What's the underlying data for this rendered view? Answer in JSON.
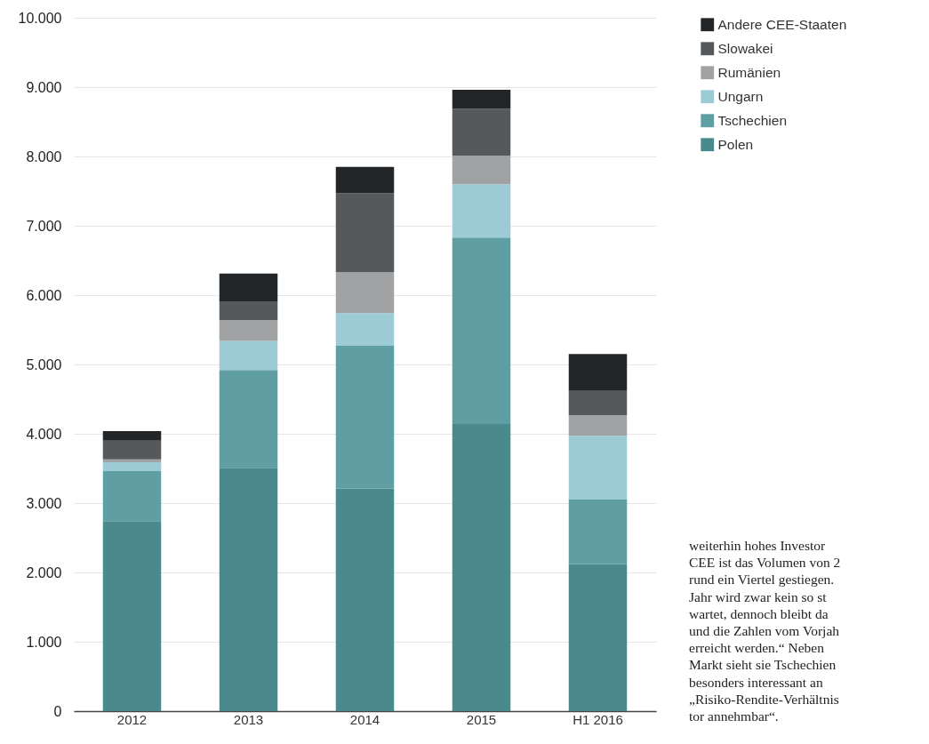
{
  "chart_data": {
    "type": "bar",
    "stacked": true,
    "categories": [
      "2012",
      "2013",
      "2014",
      "2015",
      "H1 2016"
    ],
    "series": [
      {
        "name": "Polen",
        "color": "#4a8a8c",
        "values": [
          2740,
          3510,
          3210,
          4140,
          2120
        ]
      },
      {
        "name": "Tschechien",
        "color": "#5f9ea2",
        "values": [
          720,
          1410,
          2060,
          2690,
          930
        ]
      },
      {
        "name": "Ungarn",
        "color": "#9ccbd6",
        "values": [
          130,
          420,
          470,
          770,
          920
        ]
      },
      {
        "name": "Rumänien",
        "color": "#a0a2a4",
        "values": [
          40,
          300,
          590,
          410,
          300
        ]
      },
      {
        "name": "Slowakei",
        "color": "#55595c",
        "values": [
          270,
          270,
          1140,
          680,
          350
        ]
      },
      {
        "name": "Andere CEE-Staaten",
        "color": "#232629",
        "values": [
          140,
          400,
          380,
          270,
          530
        ]
      }
    ],
    "ylim": [
      0,
      10000
    ],
    "yticks": [
      0,
      {
        "value": 1000,
        "label": "1.000"
      },
      {
        "value": 2000,
        "label": "2.000"
      },
      {
        "value": 3000,
        "label": "3.000"
      },
      {
        "value": 4000,
        "label": "4.000"
      },
      {
        "value": 5000,
        "label": "5.000"
      },
      {
        "value": 6000,
        "label": "6.000"
      },
      {
        "value": 7000,
        "label": "7.000"
      },
      {
        "value": 8000,
        "label": "8.000"
      },
      {
        "value": 9000,
        "label": "9.000"
      },
      {
        "value": 10000,
        "label": "10.000"
      }
    ],
    "grid": "y",
    "legend": "top right",
    "annotations": [
      "weiterhin hohes Investor",
      "CEE ist das Volumen von 2",
      "rund ein Viertel gestiegen.",
      "Jahr wird zwar kein so st",
      "wartet, dennoch bleibt da",
      "und die Zahlen vom Vorjah",
      "erreicht werden.“ Neben",
      "Markt sieht sie Tschechien",
      "besonders interessant an",
      "„Risiko-Rendite-Verhältnis",
      "tor annehmbar“."
    ]
  }
}
